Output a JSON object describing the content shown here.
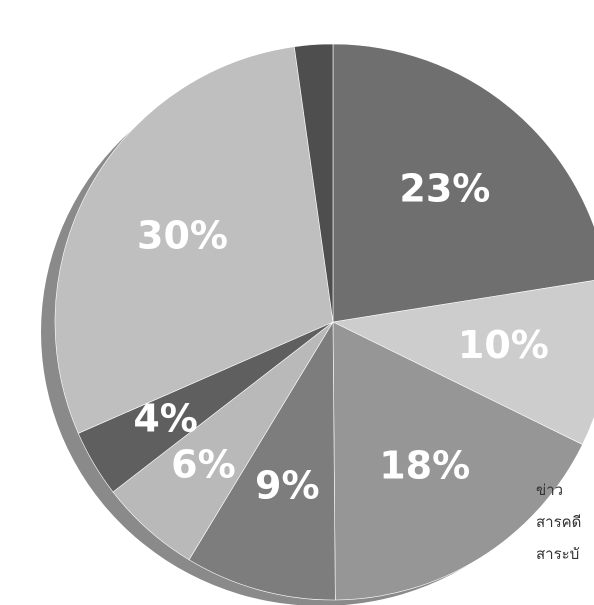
{
  "chart_data": {
    "type": "pie",
    "categories": [
      "",
      "",
      "",
      "",
      "",
      "",
      "",
      ""
    ],
    "values": [
      23,
      10,
      18,
      9,
      6,
      4,
      30,
      0
    ],
    "labels": [
      "23%",
      "10%",
      "18%",
      "9%",
      "6%",
      "4%",
      "30%",
      ""
    ],
    "colors": [
      "#6f6f6f",
      "#cdcdcd",
      "#969696",
      "#7d7d7d",
      "#b9b9b9",
      "#5f5f5f",
      "#bfbfbf",
      "#4e4e4e"
    ],
    "title": "",
    "legend": {
      "placement": "bottom-right",
      "items": [
        "ข่าว",
        "สารคดี",
        "สาระบั"
      ]
    }
  }
}
